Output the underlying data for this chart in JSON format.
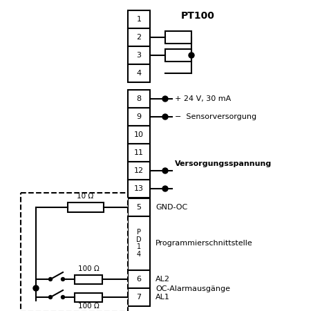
{
  "bg_color": "#ffffff",
  "line_color": "#000000",
  "text_color": "#000000",
  "pt100_label": "PT100",
  "power_label1": "+ 24 V, 30 mA",
  "power_label2": "−  Sensorversorgung",
  "power_label3": "Versorgungsspannung",
  "prog_label1": "GND-OC",
  "prog_label2": "Programmierschnittstelle",
  "prog_label3": "AL2",
  "prog_label4": "OC-Alarmausgänge",
  "prog_label5": "AL1",
  "resistor_label1": "10 Ω",
  "resistor_label2": "100 Ω",
  "resistor_label3": "100 Ω"
}
